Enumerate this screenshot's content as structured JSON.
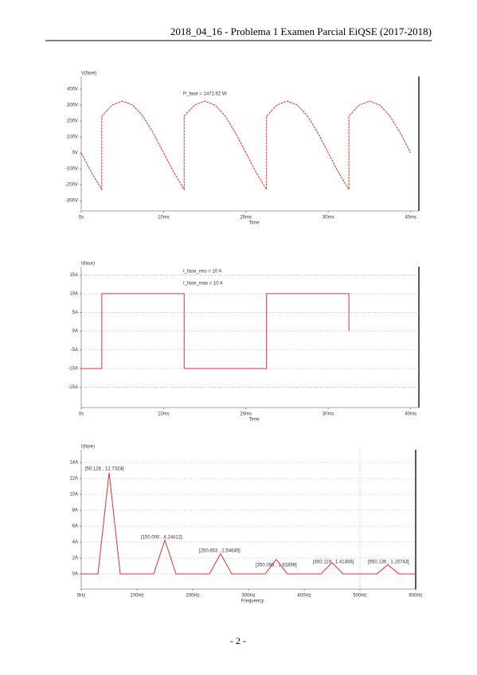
{
  "header": {
    "title": "2018_04_16 - Problema 1 Examen Parcial EiQSE (2017-2018)"
  },
  "footer": {
    "page": "- 2 -"
  },
  "chart_data": [
    {
      "type": "line",
      "title": "P_fase = 1472.62 W",
      "xlabel": "Time",
      "grid": false,
      "x": [
        0,
        1.25,
        2.5,
        2.5,
        3.75,
        5,
        6.25,
        7.5,
        8.75,
        10,
        11.25,
        12.5,
        12.5,
        13.75,
        15,
        16.25,
        17.5,
        18.75,
        20,
        21.25,
        22.5,
        22.5,
        23.75,
        25,
        26.25,
        27.5,
        28.75,
        30,
        31.25,
        32.5,
        32.5,
        33.75,
        35,
        36.25,
        37.5,
        38.75,
        40
      ],
      "series": [
        {
          "name": "V(fase)",
          "color": "#e03030",
          "values": [
            0,
            -124,
            -230,
            230,
            300,
            325,
            300,
            230,
            124,
            0,
            -124,
            -230,
            230,
            300,
            325,
            300,
            230,
            124,
            0,
            -124,
            -230,
            230,
            300,
            325,
            300,
            230,
            124,
            0,
            -124,
            -230,
            230,
            300,
            325,
            300,
            230,
            124,
            0
          ]
        }
      ],
      "xlim": [
        0,
        41
      ],
      "ylim": [
        -365,
        480
      ],
      "xticks": [
        {
          "value": 0,
          "label": "0s"
        },
        {
          "value": 10,
          "label": "10ms"
        },
        {
          "value": 20,
          "label": "20ms"
        },
        {
          "value": 30,
          "label": "30ms"
        },
        {
          "value": 40,
          "label": "40ms"
        }
      ],
      "yticks": [
        {
          "value": 400,
          "label": "400V"
        },
        {
          "value": 300,
          "label": "300V"
        },
        {
          "value": 200,
          "label": "200V"
        },
        {
          "value": 100,
          "label": "100V"
        },
        {
          "value": 0,
          "label": "0V"
        },
        {
          "value": -100,
          "label": "-100V"
        },
        {
          "value": -200,
          "label": "-200V"
        },
        {
          "value": -300,
          "label": "-300V"
        }
      ]
    },
    {
      "type": "line",
      "xlabel": "Time",
      "grid": true,
      "annotations": [
        "I_fase_rms = 10 A",
        "I_fase_max = 10 A"
      ],
      "x": [
        0,
        2.5,
        2.5,
        12.5,
        12.5,
        22.5,
        22.5,
        32.5,
        32.5
      ],
      "series": [
        {
          "name": "I(fase)",
          "color": "#e03030",
          "values": [
            -10,
            -10,
            10,
            10,
            -10,
            -10,
            10,
            10,
            0
          ]
        }
      ],
      "xlim": [
        0,
        41
      ],
      "ylim": [
        -20.4,
        17.2
      ],
      "xticks": [
        {
          "value": 0,
          "label": "0s"
        },
        {
          "value": 10,
          "label": "10ms"
        },
        {
          "value": 20,
          "label": "20ms"
        },
        {
          "value": 30,
          "label": "30ms"
        },
        {
          "value": 40,
          "label": "40ms"
        }
      ],
      "yticks": [
        {
          "value": 15,
          "label": "15A"
        },
        {
          "value": 10,
          "label": "10A"
        },
        {
          "value": 5,
          "label": "5A"
        },
        {
          "value": 0,
          "label": "0A"
        },
        {
          "value": -5,
          "label": "-5A"
        },
        {
          "value": -10,
          "label": "-10A"
        },
        {
          "value": -15,
          "label": "-15A"
        }
      ]
    },
    {
      "type": "line",
      "xlabel": "Frequency",
      "grid": true,
      "annotations": [
        "[50.126 , 12.7324]",
        "[150.000 , 4.24412]",
        "[250.853 , 2.54645]",
        "[350.098 , 1.81898]",
        "[450.119 , 1.41456]",
        "[550.136 , 1.15743]"
      ],
      "x": [
        0,
        30,
        50,
        70,
        130,
        150,
        170,
        230,
        250,
        270,
        330,
        350,
        370,
        430,
        450,
        470,
        530,
        550,
        570,
        600
      ],
      "series": [
        {
          "name": "I(fase)",
          "color": "#e03030",
          "values": [
            0,
            0,
            12.7324,
            0,
            0,
            4.24412,
            0,
            0,
            2.54645,
            0,
            0,
            1.81898,
            0,
            0,
            1.41456,
            0,
            0,
            1.15743,
            0,
            0
          ]
        }
      ],
      "xlim": [
        0,
        600
      ],
      "ylim": [
        -1.9,
        15.6
      ],
      "xticks": [
        {
          "value": 0,
          "label": "0Hz"
        },
        {
          "value": 100,
          "label": "100Hz"
        },
        {
          "value": 200,
          "label": "200Hz"
        },
        {
          "value": 300,
          "label": "300Hz"
        },
        {
          "value": 400,
          "label": "400Hz"
        },
        {
          "value": 500,
          "label": "500Hz"
        },
        {
          "value": 600,
          "label": "600Hz"
        }
      ],
      "yticks": [
        {
          "value": 0,
          "label": "0A"
        },
        {
          "value": 2,
          "label": "2A"
        },
        {
          "value": 4,
          "label": "4A"
        },
        {
          "value": 6,
          "label": "6A"
        },
        {
          "value": 8,
          "label": "8A"
        },
        {
          "value": 10,
          "label": "10A"
        },
        {
          "value": 12,
          "label": "12A"
        },
        {
          "value": 14,
          "label": "14A"
        }
      ]
    }
  ]
}
